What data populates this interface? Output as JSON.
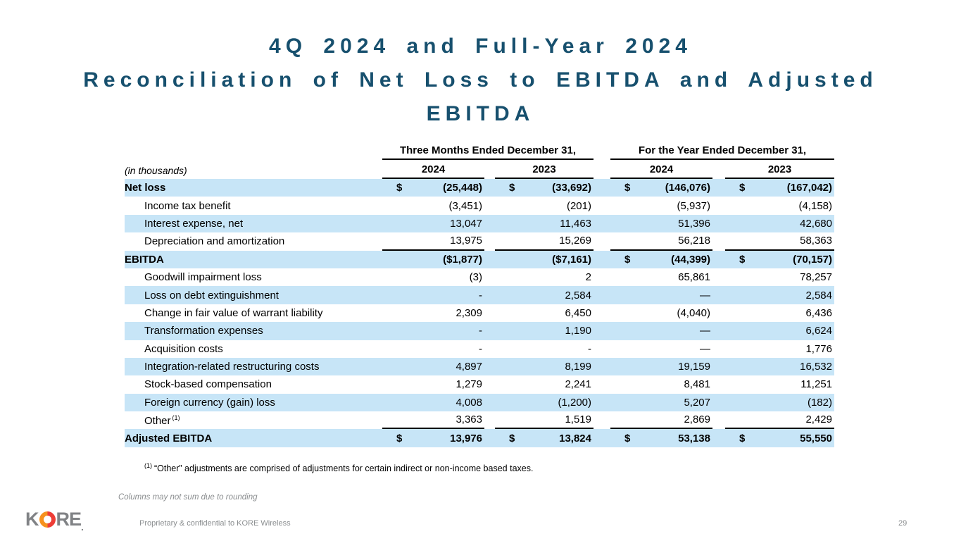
{
  "title": {
    "lines": [
      "4Q 2024 and Full-Year 2024",
      "Reconciliation of Net Loss to EBITDA and Adjusted",
      "EBITDA"
    ]
  },
  "table": {
    "group_headers": [
      "Three Months Ended December 31,",
      "For the Year Ended December 31,"
    ],
    "in_thousands_label": "(in thousands)",
    "year_headers": [
      "2024",
      "2023",
      "2024",
      "2023"
    ],
    "rows": [
      {
        "label": "Net loss",
        "bold": true,
        "indent": false,
        "shaded": true,
        "rule_after": false,
        "cells": [
          [
            "$",
            "(25,448)"
          ],
          [
            "$",
            "(33,692)"
          ],
          [
            "$",
            "(146,076)"
          ],
          [
            "$",
            "(167,042)"
          ]
        ]
      },
      {
        "label": "Income tax benefit",
        "bold": false,
        "indent": true,
        "shaded": false,
        "rule_after": false,
        "cells": [
          [
            "",
            "(3,451)"
          ],
          [
            "",
            "(201)"
          ],
          [
            "",
            "(5,937)"
          ],
          [
            "",
            "(4,158)"
          ]
        ]
      },
      {
        "label": "Interest expense, net",
        "bold": false,
        "indent": true,
        "shaded": true,
        "rule_after": false,
        "cells": [
          [
            "",
            "13,047"
          ],
          [
            "",
            "11,463"
          ],
          [
            "",
            "51,396"
          ],
          [
            "",
            "42,680"
          ]
        ]
      },
      {
        "label": "Depreciation and amortization",
        "bold": false,
        "indent": true,
        "shaded": false,
        "rule_after": true,
        "cells": [
          [
            "",
            "13,975"
          ],
          [
            "",
            "15,269"
          ],
          [
            "",
            "56,218"
          ],
          [
            "",
            "58,363"
          ]
        ]
      },
      {
        "label": "EBITDA",
        "bold": true,
        "indent": false,
        "shaded": true,
        "rule_after": false,
        "cells": [
          [
            "",
            "($1,877)"
          ],
          [
            "",
            "($7,161)"
          ],
          [
            "$",
            "(44,399)"
          ],
          [
            "$",
            "(70,157)"
          ]
        ]
      },
      {
        "label": "Goodwill impairment loss",
        "bold": false,
        "indent": true,
        "shaded": false,
        "rule_after": false,
        "cells": [
          [
            "",
            "(3)"
          ],
          [
            "",
            "2"
          ],
          [
            "",
            "65,861"
          ],
          [
            "",
            "78,257"
          ]
        ]
      },
      {
        "label": "Loss on debt extinguishment",
        "bold": false,
        "indent": true,
        "shaded": true,
        "rule_after": false,
        "cells": [
          [
            "",
            "-"
          ],
          [
            "",
            "2,584"
          ],
          [
            "",
            "—"
          ],
          [
            "",
            "2,584"
          ]
        ]
      },
      {
        "label": "Change in fair value of warrant liability",
        "bold": false,
        "indent": true,
        "shaded": false,
        "rule_after": false,
        "cells": [
          [
            "",
            "2,309"
          ],
          [
            "",
            "6,450"
          ],
          [
            "",
            "(4,040)"
          ],
          [
            "",
            "6,436"
          ]
        ]
      },
      {
        "label": "Transformation expenses",
        "bold": false,
        "indent": true,
        "shaded": true,
        "rule_after": false,
        "cells": [
          [
            "",
            "-"
          ],
          [
            "",
            "1,190"
          ],
          [
            "",
            "—"
          ],
          [
            "",
            "6,624"
          ]
        ]
      },
      {
        "label": "Acquisition costs",
        "bold": false,
        "indent": true,
        "shaded": false,
        "rule_after": false,
        "cells": [
          [
            "",
            "-"
          ],
          [
            "",
            "-"
          ],
          [
            "",
            "—"
          ],
          [
            "",
            "1,776"
          ]
        ]
      },
      {
        "label": "Integration-related restructuring costs",
        "bold": false,
        "indent": true,
        "shaded": true,
        "rule_after": false,
        "cells": [
          [
            "",
            "4,897"
          ],
          [
            "",
            "8,199"
          ],
          [
            "",
            "19,159"
          ],
          [
            "",
            "16,532"
          ]
        ]
      },
      {
        "label": "Stock-based compensation",
        "bold": false,
        "indent": true,
        "shaded": false,
        "rule_after": false,
        "cells": [
          [
            "",
            "1,279"
          ],
          [
            "",
            "2,241"
          ],
          [
            "",
            "8,481"
          ],
          [
            "",
            "11,251"
          ]
        ]
      },
      {
        "label": "Foreign currency (gain) loss",
        "bold": false,
        "indent": true,
        "shaded": true,
        "rule_after": false,
        "cells": [
          [
            "",
            "4,008"
          ],
          [
            "",
            "(1,200)"
          ],
          [
            "",
            "5,207"
          ],
          [
            "",
            "(182)"
          ]
        ]
      },
      {
        "label": "Other",
        "sup": "(1)",
        "bold": false,
        "indent": true,
        "shaded": false,
        "rule_after": true,
        "cells": [
          [
            "",
            "3,363"
          ],
          [
            "",
            "1,519"
          ],
          [
            "",
            "2,869"
          ],
          [
            "",
            "2,429"
          ]
        ]
      },
      {
        "label": "Adjusted EBITDA",
        "bold": true,
        "indent": false,
        "shaded": true,
        "rule_after": false,
        "cells": [
          [
            "$",
            "13,976"
          ],
          [
            "$",
            "13,824"
          ],
          [
            "$",
            "53,138"
          ],
          [
            "$",
            "55,550"
          ]
        ]
      }
    ]
  },
  "footnote": {
    "sup": "(1)",
    "text": "“Other” adjustments are comprised of adjustments for certain indirect or non-income based taxes."
  },
  "footer": {
    "rounding_note": "Columns may not sum due to rounding",
    "confidential": "Proprietary & confidential to KORE Wireless",
    "page_number": "29",
    "logo_k": "K",
    "logo_re": "RE",
    "logo_dot": "."
  },
  "colors": {
    "title": "#17506e",
    "row_shade": "#c7e5f7",
    "rule": "#000000",
    "footer_text": "#8a8d8f",
    "logo_gray": "#808285",
    "logo_orange": "#f6921e",
    "logo_red": "#ee3d36"
  }
}
